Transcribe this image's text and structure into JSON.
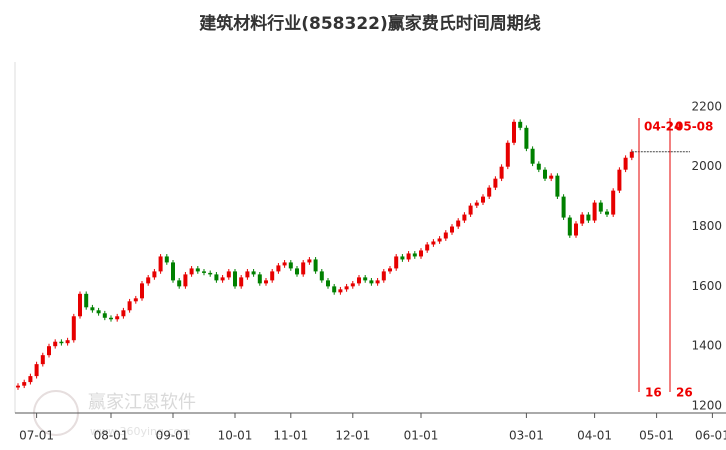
{
  "chart_data": {
    "type": "candlestick",
    "title": "建筑材料行业(858322)赢家费氏时间周期线",
    "watermark": "赢家江恩软件",
    "watermark_url": "www.360ying.com",
    "categories": [
      null,
      null,
      null,
      "07-01",
      null,
      null,
      null,
      null,
      null,
      null,
      null,
      null,
      null,
      null,
      null,
      "08-01",
      null,
      null,
      null,
      null,
      null,
      null,
      null,
      null,
      null,
      "09-01",
      null,
      null,
      null,
      null,
      null,
      null,
      null,
      null,
      null,
      "10-01",
      null,
      null,
      null,
      null,
      null,
      null,
      null,
      null,
      "11-01",
      null,
      null,
      null,
      null,
      null,
      null,
      null,
      null,
      null,
      "12-01",
      null,
      null,
      null,
      null,
      null,
      null,
      null,
      null,
      null,
      null,
      "01-01",
      null,
      null,
      null,
      null,
      null,
      null,
      null,
      null,
      null,
      null,
      null,
      null,
      null,
      null,
      null,
      null,
      "03-01",
      null,
      null,
      null,
      null,
      null,
      null,
      null,
      null,
      null,
      null,
      "04-01",
      null,
      null,
      null,
      null,
      null,
      null,
      null,
      null,
      null,
      "05-01",
      null,
      null,
      null,
      null,
      null,
      null,
      null,
      null,
      "06-01"
    ],
    "open": [
      1262,
      1268,
      1280,
      1300,
      1340,
      1370,
      1400,
      1415,
      1410,
      1420,
      1500,
      1575,
      1530,
      1520,
      1510,
      1495,
      1490,
      1500,
      1520,
      1550,
      1560,
      1610,
      1630,
      1650,
      1700,
      1680,
      1620,
      1600,
      1640,
      1660,
      1650,
      1645,
      1640,
      1620,
      1630,
      1650,
      1600,
      1630,
      1650,
      1640,
      1610,
      1620,
      1650,
      1670,
      1680,
      1660,
      1640,
      1680,
      1690,
      1650,
      1620,
      1600,
      1580,
      1590,
      1600,
      1610,
      1630,
      1620,
      1610,
      1620,
      1650,
      1660,
      1700,
      1690,
      1710,
      1700,
      1720,
      1740,
      1750,
      1760,
      1780,
      1800,
      1820,
      1840,
      1870,
      1880,
      1900,
      1930,
      1960,
      2000,
      2080,
      2150,
      2130,
      2060,
      2010,
      1990,
      1960,
      1970,
      1900,
      1830,
      1770,
      1810,
      1840,
      1820,
      1880,
      1850,
      1840,
      1920,
      1990,
      2030,
      null,
      null,
      null,
      null,
      null,
      null,
      null,
      null,
      null,
      null,
      null,
      null,
      null
    ],
    "high": [
      1276,
      1288,
      1308,
      1348,
      1378,
      1408,
      1423,
      1423,
      1428,
      1508,
      1583,
      1583,
      1538,
      1528,
      1518,
      1503,
      1508,
      1528,
      1558,
      1568,
      1618,
      1638,
      1658,
      1708,
      1708,
      1688,
      1628,
      1648,
      1668,
      1668,
      1658,
      1653,
      1648,
      1638,
      1658,
      1658,
      1638,
      1658,
      1658,
      1648,
      1628,
      1658,
      1678,
      1688,
      1688,
      1668,
      1688,
      1698,
      1698,
      1658,
      1628,
      1608,
      1598,
      1608,
      1618,
      1638,
      1638,
      1628,
      1628,
      1658,
      1668,
      1708,
      1708,
      1718,
      1718,
      1728,
      1748,
      1758,
      1768,
      1788,
      1808,
      1828,
      1848,
      1878,
      1888,
      1908,
      1938,
      1968,
      2008,
      2088,
      2158,
      2158,
      2138,
      2068,
      2018,
      1998,
      1978,
      1978,
      1908,
      1838,
      1818,
      1848,
      1848,
      1888,
      1888,
      1858,
      1928,
      1998,
      2038,
      2058,
      null,
      null,
      null,
      null,
      null,
      null,
      null,
      null,
      null,
      null,
      null,
      null,
      null
    ],
    "low": [
      1254,
      1260,
      1272,
      1292,
      1332,
      1362,
      1392,
      1402,
      1402,
      1412,
      1492,
      1522,
      1512,
      1502,
      1487,
      1482,
      1482,
      1492,
      1512,
      1542,
      1552,
      1602,
      1622,
      1642,
      1672,
      1612,
      1592,
      1592,
      1632,
      1642,
      1637,
      1632,
      1612,
      1612,
      1622,
      1592,
      1592,
      1622,
      1632,
      1602,
      1602,
      1612,
      1642,
      1662,
      1652,
      1632,
      1632,
      1672,
      1642,
      1612,
      1592,
      1572,
      1572,
      1582,
      1592,
      1602,
      1612,
      1602,
      1602,
      1612,
      1642,
      1652,
      1682,
      1682,
      1692,
      1692,
      1712,
      1732,
      1742,
      1752,
      1772,
      1792,
      1812,
      1832,
      1862,
      1872,
      1892,
      1922,
      1952,
      1992,
      2072,
      2122,
      2052,
      2002,
      1982,
      1952,
      1952,
      1892,
      1822,
      1762,
      1762,
      1802,
      1812,
      1812,
      1842,
      1832,
      1832,
      1912,
      1982,
      2022,
      null,
      null,
      null,
      null,
      null,
      null,
      null,
      null,
      null,
      null,
      null,
      null,
      null
    ],
    "close": [
      1268,
      1280,
      1300,
      1340,
      1370,
      1400,
      1415,
      1410,
      1420,
      1500,
      1575,
      1530,
      1520,
      1510,
      1495,
      1490,
      1500,
      1520,
      1550,
      1560,
      1610,
      1630,
      1650,
      1700,
      1680,
      1620,
      1600,
      1640,
      1660,
      1650,
      1645,
      1640,
      1620,
      1630,
      1650,
      1600,
      1630,
      1650,
      1640,
      1610,
      1620,
      1650,
      1670,
      1680,
      1660,
      1640,
      1680,
      1690,
      1650,
      1620,
      1600,
      1580,
      1590,
      1600,
      1610,
      1630,
      1620,
      1610,
      1620,
      1650,
      1660,
      1700,
      1690,
      1710,
      1700,
      1720,
      1740,
      1750,
      1760,
      1780,
      1800,
      1820,
      1840,
      1870,
      1880,
      1900,
      1930,
      1960,
      2000,
      2080,
      2150,
      2130,
      2060,
      2010,
      1990,
      1960,
      1970,
      1900,
      1830,
      1770,
      1810,
      1840,
      1820,
      1880,
      1850,
      1840,
      1920,
      1990,
      2030,
      2050,
      null,
      null,
      null,
      null,
      null,
      null,
      null,
      null,
      null,
      null,
      null,
      null,
      null
    ],
    "up_color": "#e60000",
    "down_color": "#008000",
    "ylim": [
      1180,
      2350
    ],
    "yticks": [
      1200,
      1400,
      1600,
      1800,
      2000,
      2200
    ],
    "grid": false,
    "time_lines": [
      {
        "label": "04-24",
        "count": "16",
        "color": "#e60000"
      },
      {
        "label": "05-08",
        "count": "26",
        "color": "#e60000"
      }
    ]
  }
}
